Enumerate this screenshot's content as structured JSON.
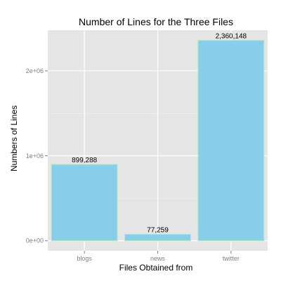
{
  "chart_data": {
    "type": "bar",
    "title": "Number of Lines for the Three Files",
    "xlabel": "Files Obtained from",
    "ylabel": "Numbers of Lines",
    "categories": [
      "blogs",
      "news",
      "twitter"
    ],
    "values": [
      899288,
      77259,
      2360148
    ],
    "data_labels": [
      "899,288",
      "77,259",
      "2,360,148"
    ],
    "yticks": [
      0,
      1000000,
      2000000
    ],
    "ytick_labels": [
      "0e+00",
      "1e+06",
      "2e+06"
    ],
    "ylim": [
      -118007,
      2478155
    ],
    "grid": true,
    "legend": "none",
    "colors": {
      "bar_fill": "#87ceeb",
      "bar_outline": "#b4eeb4",
      "panel_background": "#e5e5e5",
      "grid_major": "#ffffff",
      "grid_minor": "#f2f2f2",
      "tick_text": "#7f7f7f"
    }
  }
}
